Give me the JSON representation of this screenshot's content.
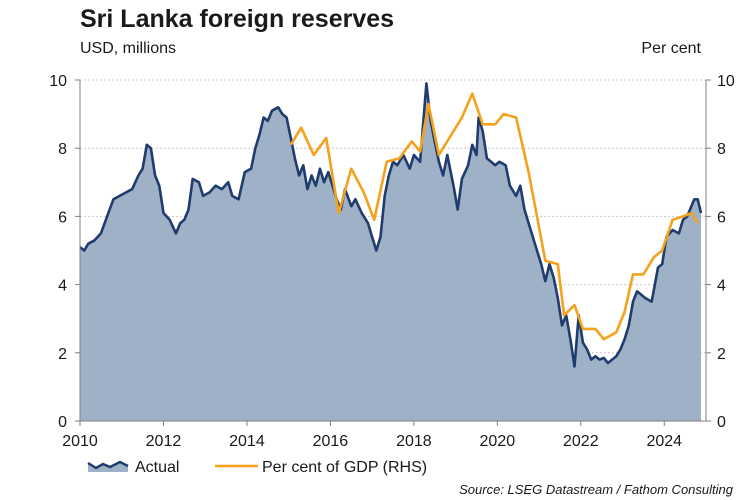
{
  "chart_data": {
    "type": "line",
    "title": "Sri Lanka foreign reserves",
    "ylabel_left": "USD, millions",
    "ylabel_right": "Per cent",
    "xlim": [
      2010.0,
      2025.0
    ],
    "ylim_left": [
      0,
      10
    ],
    "ylim_right": [
      0,
      10
    ],
    "x_ticks": [
      2010,
      2012,
      2014,
      2016,
      2018,
      2020,
      2022,
      2024
    ],
    "y_ticks_left": [
      0,
      2,
      4,
      6,
      8,
      10
    ],
    "y_ticks_right": [
      0,
      2,
      4,
      6,
      8,
      10
    ],
    "grid": true,
    "series": [
      {
        "name": "Actual",
        "axis": "left",
        "style": "area",
        "color": "#1f3c6e",
        "fill": "#9fb1c6",
        "points": [
          [
            2010.0,
            5.1
          ],
          [
            2010.1,
            5.0
          ],
          [
            2010.2,
            5.2
          ],
          [
            2010.35,
            5.3
          ],
          [
            2010.5,
            5.5
          ],
          [
            2010.65,
            6.0
          ],
          [
            2010.8,
            6.5
          ],
          [
            2010.95,
            6.6
          ],
          [
            2011.1,
            6.7
          ],
          [
            2011.25,
            6.8
          ],
          [
            2011.4,
            7.2
          ],
          [
            2011.5,
            7.4
          ],
          [
            2011.6,
            8.1
          ],
          [
            2011.7,
            8.0
          ],
          [
            2011.8,
            7.2
          ],
          [
            2011.9,
            6.9
          ],
          [
            2012.0,
            6.1
          ],
          [
            2012.15,
            5.9
          ],
          [
            2012.3,
            5.5
          ],
          [
            2012.4,
            5.8
          ],
          [
            2012.5,
            5.9
          ],
          [
            2012.6,
            6.2
          ],
          [
            2012.7,
            7.1
          ],
          [
            2012.85,
            7.0
          ],
          [
            2012.95,
            6.6
          ],
          [
            2013.1,
            6.7
          ],
          [
            2013.25,
            6.9
          ],
          [
            2013.4,
            6.8
          ],
          [
            2013.55,
            7.0
          ],
          [
            2013.65,
            6.6
          ],
          [
            2013.8,
            6.5
          ],
          [
            2013.95,
            7.3
          ],
          [
            2014.1,
            7.4
          ],
          [
            2014.2,
            8.0
          ],
          [
            2014.3,
            8.4
          ],
          [
            2014.4,
            8.9
          ],
          [
            2014.5,
            8.8
          ],
          [
            2014.6,
            9.1
          ],
          [
            2014.75,
            9.2
          ],
          [
            2014.85,
            9.0
          ],
          [
            2014.95,
            8.9
          ],
          [
            2015.05,
            8.3
          ],
          [
            2015.15,
            7.7
          ],
          [
            2015.25,
            7.2
          ],
          [
            2015.35,
            7.5
          ],
          [
            2015.45,
            6.8
          ],
          [
            2015.55,
            7.2
          ],
          [
            2015.65,
            6.9
          ],
          [
            2015.75,
            7.4
          ],
          [
            2015.85,
            7.0
          ],
          [
            2015.95,
            7.3
          ],
          [
            2016.05,
            6.9
          ],
          [
            2016.15,
            6.5
          ],
          [
            2016.25,
            6.2
          ],
          [
            2016.35,
            6.8
          ],
          [
            2016.5,
            6.3
          ],
          [
            2016.6,
            6.5
          ],
          [
            2016.75,
            6.1
          ],
          [
            2016.9,
            5.8
          ],
          [
            2017.0,
            5.4
          ],
          [
            2017.1,
            5.0
          ],
          [
            2017.2,
            5.4
          ],
          [
            2017.3,
            6.6
          ],
          [
            2017.4,
            7.2
          ],
          [
            2017.5,
            7.6
          ],
          [
            2017.6,
            7.5
          ],
          [
            2017.75,
            7.8
          ],
          [
            2017.9,
            7.4
          ],
          [
            2018.0,
            7.8
          ],
          [
            2018.15,
            7.6
          ],
          [
            2018.3,
            9.9
          ],
          [
            2018.4,
            8.8
          ],
          [
            2018.5,
            8.2
          ],
          [
            2018.6,
            7.6
          ],
          [
            2018.7,
            7.2
          ],
          [
            2018.8,
            7.8
          ],
          [
            2018.95,
            6.9
          ],
          [
            2019.05,
            6.2
          ],
          [
            2019.15,
            7.1
          ],
          [
            2019.3,
            7.5
          ],
          [
            2019.4,
            8.1
          ],
          [
            2019.5,
            7.8
          ],
          [
            2019.55,
            8.9
          ],
          [
            2019.65,
            8.5
          ],
          [
            2019.75,
            7.7
          ],
          [
            2019.85,
            7.6
          ],
          [
            2019.95,
            7.5
          ],
          [
            2020.05,
            7.6
          ],
          [
            2020.2,
            7.5
          ],
          [
            2020.3,
            6.9
          ],
          [
            2020.45,
            6.6
          ],
          [
            2020.55,
            6.9
          ],
          [
            2020.65,
            6.2
          ],
          [
            2020.8,
            5.6
          ],
          [
            2020.9,
            5.2
          ],
          [
            2021.05,
            4.6
          ],
          [
            2021.15,
            4.1
          ],
          [
            2021.25,
            4.6
          ],
          [
            2021.35,
            4.2
          ],
          [
            2021.45,
            3.6
          ],
          [
            2021.55,
            2.8
          ],
          [
            2021.65,
            3.1
          ],
          [
            2021.75,
            2.4
          ],
          [
            2021.85,
            1.6
          ],
          [
            2021.95,
            3.1
          ],
          [
            2022.05,
            2.3
          ],
          [
            2022.15,
            2.1
          ],
          [
            2022.25,
            1.8
          ],
          [
            2022.35,
            1.9
          ],
          [
            2022.45,
            1.8
          ],
          [
            2022.55,
            1.85
          ],
          [
            2022.65,
            1.7
          ],
          [
            2022.75,
            1.8
          ],
          [
            2022.85,
            1.9
          ],
          [
            2022.95,
            2.1
          ],
          [
            2023.05,
            2.4
          ],
          [
            2023.15,
            2.8
          ],
          [
            2023.25,
            3.5
          ],
          [
            2023.35,
            3.8
          ],
          [
            2023.45,
            3.7
          ],
          [
            2023.55,
            3.6
          ],
          [
            2023.7,
            3.5
          ],
          [
            2023.85,
            4.5
          ],
          [
            2023.95,
            4.6
          ],
          [
            2024.05,
            5.4
          ],
          [
            2024.2,
            5.6
          ],
          [
            2024.35,
            5.5
          ],
          [
            2024.45,
            5.9
          ],
          [
            2024.55,
            6.0
          ],
          [
            2024.65,
            6.3
          ],
          [
            2024.72,
            6.5
          ],
          [
            2024.8,
            6.5
          ],
          [
            2024.88,
            6.1
          ]
        ]
      },
      {
        "name": "Per cent of GDP (RHS)",
        "axis": "right",
        "style": "line",
        "color": "#f4a21c",
        "points": [
          [
            2015.05,
            8.1
          ],
          [
            2015.3,
            8.6
          ],
          [
            2015.6,
            7.8
          ],
          [
            2015.9,
            8.3
          ],
          [
            2016.2,
            6.1
          ],
          [
            2016.5,
            7.4
          ],
          [
            2016.8,
            6.7
          ],
          [
            2017.05,
            5.9
          ],
          [
            2017.35,
            7.6
          ],
          [
            2017.65,
            7.7
          ],
          [
            2017.95,
            8.2
          ],
          [
            2018.15,
            7.9
          ],
          [
            2018.35,
            9.3
          ],
          [
            2018.6,
            7.8
          ],
          [
            2018.85,
            8.3
          ],
          [
            2019.15,
            8.9
          ],
          [
            2019.4,
            9.6
          ],
          [
            2019.65,
            8.7
          ],
          [
            2019.95,
            8.7
          ],
          [
            2020.15,
            9.0
          ],
          [
            2020.45,
            8.9
          ],
          [
            2020.75,
            7.3
          ],
          [
            2020.95,
            6.0
          ],
          [
            2021.15,
            4.7
          ],
          [
            2021.45,
            4.6
          ],
          [
            2021.6,
            3.1
          ],
          [
            2021.85,
            3.4
          ],
          [
            2022.05,
            2.7
          ],
          [
            2022.35,
            2.7
          ],
          [
            2022.55,
            2.4
          ],
          [
            2022.85,
            2.6
          ],
          [
            2023.05,
            3.2
          ],
          [
            2023.25,
            4.3
          ],
          [
            2023.5,
            4.3
          ],
          [
            2023.75,
            4.8
          ],
          [
            2023.95,
            5.0
          ],
          [
            2024.2,
            5.9
          ],
          [
            2024.45,
            6.0
          ],
          [
            2024.65,
            6.1
          ],
          [
            2024.8,
            5.8
          ]
        ]
      }
    ],
    "legend": {
      "position": "bottom-left",
      "entries": [
        "Actual",
        "Per cent of GDP (RHS)"
      ]
    },
    "source": "Source: LSEG Datastream / Fathom Consulting"
  }
}
